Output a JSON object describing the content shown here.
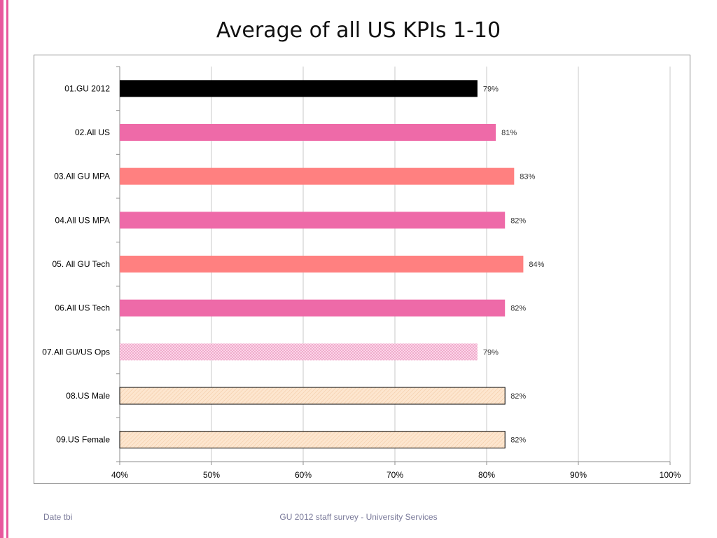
{
  "slide": {
    "title": "Average of all US KPIs 1-10",
    "footer_left": "Date tbi",
    "footer_center": "GU 2012 staff survey -  University Services"
  },
  "colors": {
    "accent": "#e8589e",
    "black": "#000000",
    "pink": "#ee6aa8",
    "salmon": "#ff8080",
    "light_pink": "#f6b6d5",
    "peach": "#fde6cf"
  },
  "chart_data": {
    "type": "bar",
    "orientation": "horizontal",
    "title": "Average of all US KPIs 1-10",
    "xlabel": "",
    "ylabel": "",
    "xlim": [
      40,
      100
    ],
    "xticks": [
      40,
      50,
      60,
      70,
      80,
      90,
      100
    ],
    "xtick_labels": [
      "40%",
      "50%",
      "60%",
      "70%",
      "80%",
      "90%",
      "100%"
    ],
    "grid": true,
    "categories": [
      "01.GU 2012",
      "02.All US",
      "03.All GU MPA",
      "04.All US MPA",
      "05. All GU Tech",
      "06.All US Tech",
      "07.All GU/US Ops",
      "08.US Male",
      "09.US Female"
    ],
    "values": [
      79,
      81,
      83,
      82,
      84,
      82,
      79,
      82,
      82
    ],
    "data_labels": [
      "79%",
      "81%",
      "83%",
      "82%",
      "84%",
      "82%",
      "79%",
      "82%",
      "82%"
    ],
    "bar_colors": [
      "#000000",
      "#ee6aa8",
      "#ff8080",
      "#ee6aa8",
      "#ff8080",
      "#ee6aa8",
      "#f6b6d5",
      "#fde6cf",
      "#fde6cf"
    ],
    "bar_patterns": [
      "solid",
      "solid",
      "solid",
      "solid",
      "solid",
      "solid",
      "dots",
      "hatch",
      "hatch"
    ],
    "bar_outlined": [
      false,
      false,
      false,
      false,
      false,
      false,
      false,
      true,
      true
    ]
  }
}
